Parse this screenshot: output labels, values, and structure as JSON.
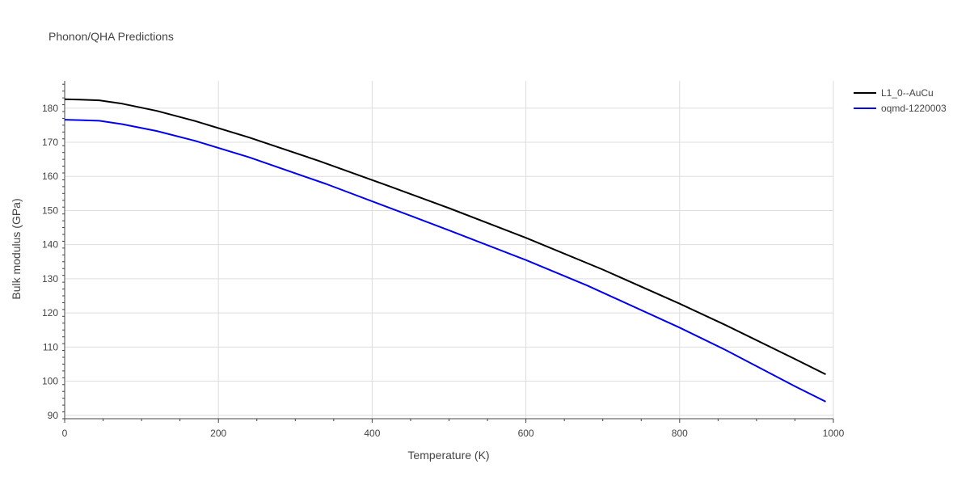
{
  "chart_data": {
    "type": "line",
    "title": "Phonon/QHA Predictions",
    "xlabel": "Temperature (K)",
    "ylabel": "Bulk modulus (GPa)",
    "xlim": [
      0,
      1000
    ],
    "ylim": [
      89,
      188
    ],
    "xticks": [
      0,
      200,
      400,
      600,
      800,
      1000
    ],
    "yticks": [
      90,
      100,
      110,
      120,
      130,
      140,
      150,
      160,
      170,
      180
    ],
    "grid": true,
    "legend_position": "top-right",
    "series": [
      {
        "name": "L1_0--AuCu",
        "color": "#000000",
        "x": [
          0,
          20,
          45,
          75,
          120,
          170,
          240,
          330,
          420,
          500,
          600,
          700,
          800,
          860,
          950,
          990
        ],
        "y": [
          182.6,
          182.5,
          182.3,
          181.3,
          179.2,
          176.2,
          171.4,
          164.6,
          157.3,
          150.7,
          142.0,
          132.7,
          122.7,
          116.4,
          106.5,
          102.0
        ]
      },
      {
        "name": "oqmd-1220003",
        "color": "#0000ee",
        "x": [
          0,
          20,
          45,
          75,
          120,
          170,
          240,
          340,
          420,
          500,
          600,
          680,
          800,
          860,
          950,
          990
        ],
        "y": [
          176.6,
          176.5,
          176.3,
          175.3,
          173.3,
          170.4,
          165.6,
          157.8,
          151.0,
          144.2,
          135.5,
          128.0,
          115.7,
          109.1,
          98.5,
          94.0
        ]
      }
    ]
  }
}
